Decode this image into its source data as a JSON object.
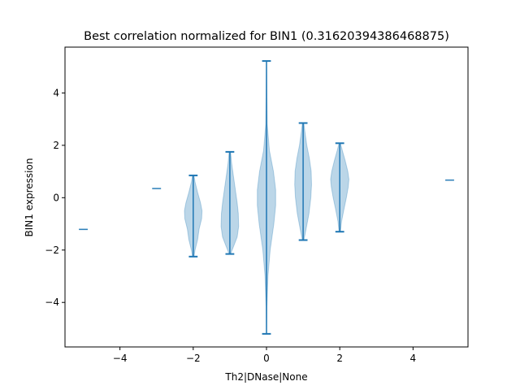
{
  "chart_data": {
    "type": "violin",
    "title": "Best correlation normalized for BIN1 (0.31620394386468875)",
    "xlabel": "Th2|DNase|None",
    "ylabel": "BIN1 expression",
    "xlim": [
      -5.5,
      5.5
    ],
    "ylim": [
      -5.7,
      5.75
    ],
    "xticks": [
      -4,
      -2,
      0,
      2,
      4
    ],
    "yticks": [
      -4,
      -2,
      0,
      2,
      4
    ],
    "colors": {
      "body": "#1f77b4",
      "line": "#1f77b4"
    },
    "violins": [
      {
        "x": -5,
        "min": -1.21,
        "max": -1.21,
        "profile": []
      },
      {
        "x": -3,
        "min": 0.35,
        "max": 0.35,
        "profile": []
      },
      {
        "x": -2,
        "min": -2.25,
        "max": 0.85,
        "profile": [
          [
            -2.25,
            0.02
          ],
          [
            -2.0,
            0.05
          ],
          [
            -1.6,
            0.12
          ],
          [
            -1.2,
            0.16
          ],
          [
            -0.8,
            0.23
          ],
          [
            -0.5,
            0.24
          ],
          [
            -0.2,
            0.2
          ],
          [
            0.2,
            0.12
          ],
          [
            0.6,
            0.05
          ],
          [
            0.85,
            0.02
          ]
        ]
      },
      {
        "x": -1,
        "min": -2.15,
        "max": 1.75,
        "profile": [
          [
            -2.15,
            0.02
          ],
          [
            -1.9,
            0.09
          ],
          [
            -1.5,
            0.2
          ],
          [
            -1.1,
            0.24
          ],
          [
            -0.6,
            0.23
          ],
          [
            -0.2,
            0.2
          ],
          [
            0.3,
            0.15
          ],
          [
            0.8,
            0.1
          ],
          [
            1.3,
            0.05
          ],
          [
            1.75,
            0.02
          ]
        ]
      },
      {
        "x": 0,
        "min": -5.2,
        "max": 5.22,
        "profile": [
          [
            -5.2,
            0.0
          ],
          [
            -4.2,
            0.01
          ],
          [
            -3.0,
            0.04
          ],
          [
            -2.0,
            0.1
          ],
          [
            -1.0,
            0.2
          ],
          [
            -0.3,
            0.25
          ],
          [
            0.3,
            0.25
          ],
          [
            1.0,
            0.19
          ],
          [
            1.8,
            0.08
          ],
          [
            2.8,
            0.02
          ],
          [
            4.0,
            0.01
          ],
          [
            5.22,
            0.0
          ]
        ]
      },
      {
        "x": 1,
        "min": -1.62,
        "max": 2.85,
        "profile": [
          [
            -1.62,
            0.02
          ],
          [
            -1.2,
            0.08
          ],
          [
            -0.6,
            0.16
          ],
          [
            0.0,
            0.21
          ],
          [
            0.5,
            0.23
          ],
          [
            1.0,
            0.22
          ],
          [
            1.5,
            0.17
          ],
          [
            2.0,
            0.1
          ],
          [
            2.5,
            0.05
          ],
          [
            2.85,
            0.02
          ]
        ]
      },
      {
        "x": 2,
        "min": -1.3,
        "max": 2.08,
        "profile": [
          [
            -1.3,
            0.02
          ],
          [
            -0.9,
            0.05
          ],
          [
            -0.4,
            0.12
          ],
          [
            0.0,
            0.18
          ],
          [
            0.4,
            0.23
          ],
          [
            0.7,
            0.25
          ],
          [
            1.0,
            0.22
          ],
          [
            1.4,
            0.15
          ],
          [
            1.8,
            0.07
          ],
          [
            2.08,
            0.02
          ]
        ]
      },
      {
        "x": 5,
        "min": 0.67,
        "max": 0.67,
        "profile": []
      }
    ]
  }
}
